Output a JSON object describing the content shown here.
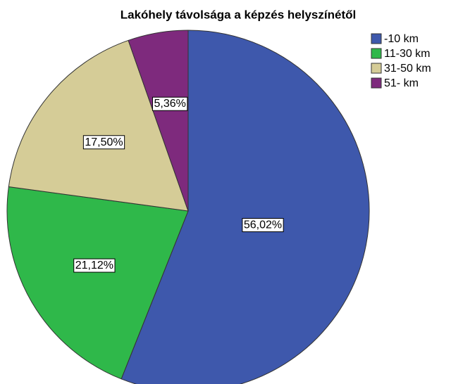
{
  "chart_data": {
    "type": "pie",
    "title": "Lakóhely távolsága a képzés helyszínétől",
    "categories": [
      "-10 km",
      "11-30 km",
      "31-50 km",
      "51- km"
    ],
    "values": [
      56.02,
      21.12,
      17.5,
      5.36
    ],
    "value_labels": [
      "56,02%",
      "21,12%",
      "17,50%",
      "5,36%"
    ],
    "colors": [
      "#3e58ac",
      "#2fb84a",
      "#d5cc97",
      "#7e2a7d"
    ],
    "legend": "upper right"
  }
}
